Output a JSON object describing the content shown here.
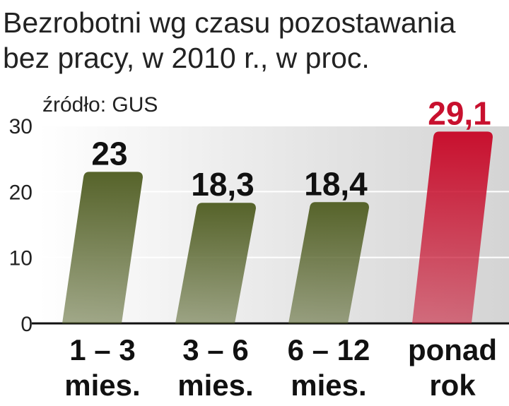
{
  "chart_data": {
    "type": "bar",
    "title": [
      "Bezrobotni wg czasu pozostawania",
      "bez pracy, w 2010 r., w proc."
    ],
    "source": "źródło: GUS",
    "categories": [
      [
        "1 – 3",
        "mies."
      ],
      [
        "3 – 6",
        "mies."
      ],
      [
        "6 – 12",
        "mies."
      ],
      [
        "ponad",
        "rok"
      ]
    ],
    "values": [
      23,
      18.3,
      18.4,
      29.1
    ],
    "value_labels": [
      "23",
      "18,3",
      "18,4",
      "29,1"
    ],
    "colors": [
      "#56632a",
      "#56632a",
      "#56632a",
      "#c8102e"
    ],
    "label_colors": [
      "#111111",
      "#111111",
      "#111111",
      "#c8102e"
    ],
    "ylim": [
      0,
      30
    ],
    "yticks": [
      0,
      10,
      20,
      30
    ],
    "grid": true
  }
}
